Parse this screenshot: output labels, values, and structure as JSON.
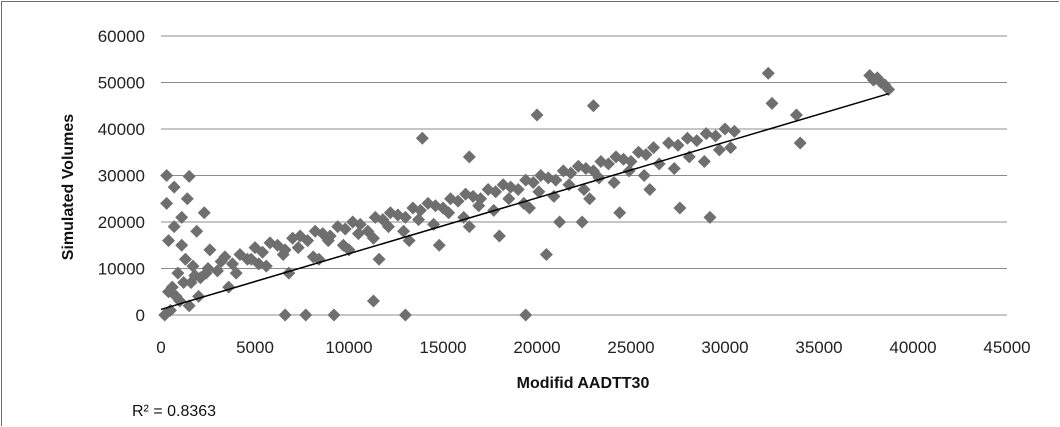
{
  "chart_data": {
    "type": "scatter",
    "title": "",
    "xlabel": "Modifid  AADTT30",
    "ylabel": "Simulated Volumes",
    "xlim": [
      0,
      45000
    ],
    "ylim": [
      0,
      60000
    ],
    "x_ticks": [
      "0",
      "5000",
      "10000",
      "15000",
      "20000",
      "25000",
      "30000",
      "35000",
      "40000",
      "45000"
    ],
    "y_ticks": [
      "0",
      "10000",
      "20000",
      "30000",
      "40000",
      "50000",
      "60000"
    ],
    "grid": "horizontal",
    "legend": "none",
    "marker": "diamond",
    "marker_color": "#6f6f6f",
    "trendline": {
      "type": "linear",
      "x": [
        0,
        38700
      ],
      "y": [
        1200,
        47600
      ],
      "color": "#000000"
    },
    "r_squared_label": "R² = 0.8363",
    "series": [
      {
        "x": [
          300,
          700,
          1100,
          1500,
          1900,
          2300,
          400,
          900,
          1300,
          1700,
          2100,
          2600,
          3000,
          3400,
          3800,
          4200,
          4600,
          5000,
          5400,
          5800,
          6200,
          6600,
          7000,
          7400,
          7800,
          8200,
          8600,
          9000,
          9400,
          9800,
          10200,
          10600,
          11000,
          11400,
          11800,
          12200,
          12600,
          13000,
          13400,
          13800,
          14200,
          14600,
          15000,
          15400,
          15800,
          16200,
          16600,
          17000,
          17400,
          17800,
          18200,
          18600,
          19000,
          19400,
          19800,
          20200,
          20600,
          21000,
          21400,
          21800,
          22200,
          22600,
          23000,
          23400,
          23800,
          24200,
          24600,
          25000,
          25400,
          25800,
          26200,
          27000,
          27500,
          28000,
          28500,
          29000,
          29500,
          30000,
          30500,
          32300,
          32500,
          33800,
          34000,
          37700,
          37900,
          38100,
          38300,
          38500,
          38700,
          200,
          500,
          1000,
          1500,
          2000,
          600,
          1200,
          1800,
          2500,
          3200,
          4000,
          4800,
          5600,
          6500,
          7300,
          8100,
          8900,
          9700,
          10500,
          11300,
          12100,
          12900,
          13700,
          14500,
          15300,
          16100,
          16900,
          17700,
          18500,
          19300,
          20100,
          20900,
          21700,
          22500,
          23300,
          24100,
          24900,
          25700,
          26500,
          27300,
          28100,
          28900,
          29700,
          30300,
          800,
          1600,
          2400,
          3600,
          5200,
          6800,
          8400,
          10000,
          11600,
          13200,
          14800,
          16400,
          18000,
          19600,
          21200,
          22800,
          24400,
          26000,
          27600,
          29200,
          400,
          700,
          1100,
          1400,
          300,
          13900,
          16400,
          19400,
          20000,
          23000,
          22400,
          20500,
          11300,
          9200,
          7700,
          6600,
          13000
        ],
        "y": [
          30000,
          27500,
          15000,
          29800,
          18000,
          22000,
          5000,
          9000,
          12000,
          10500,
          8000,
          14000,
          9500,
          12500,
          11000,
          13000,
          12000,
          14500,
          13500,
          15500,
          15000,
          14000,
          16500,
          17000,
          16000,
          18000,
          17500,
          17000,
          19000,
          18500,
          20000,
          19500,
          18000,
          21000,
          20500,
          22000,
          21500,
          21000,
          23000,
          22500,
          24000,
          23500,
          23000,
          25000,
          24500,
          26000,
          25500,
          25000,
          27000,
          26500,
          28000,
          27500,
          27000,
          29000,
          28500,
          30000,
          29500,
          29000,
          31000,
          30500,
          32000,
          31500,
          31000,
          33000,
          32500,
          34000,
          33500,
          33000,
          35000,
          34500,
          36000,
          37000,
          36500,
          38000,
          37500,
          39000,
          38500,
          40000,
          39500,
          52000,
          45500,
          43000,
          37000,
          51500,
          50500,
          51000,
          50000,
          49500,
          48500,
          0,
          1000,
          3000,
          2000,
          4000,
          6000,
          7000,
          8500,
          10000,
          11500,
          9000,
          12000,
          10500,
          13000,
          14500,
          12500,
          16000,
          15000,
          17500,
          16500,
          19000,
          18000,
          20500,
          19500,
          22000,
          21000,
          23500,
          22500,
          25000,
          24000,
          26500,
          25500,
          28000,
          27000,
          29500,
          28500,
          31000,
          30000,
          32500,
          31500,
          34000,
          33000,
          35500,
          36000,
          4000,
          7000,
          9000,
          6000,
          11000,
          9000,
          12000,
          14000,
          12000,
          16000,
          15000,
          19000,
          17000,
          23000,
          20000,
          25000,
          22000,
          27000,
          23000,
          21000,
          16000,
          19000,
          21000,
          25000,
          24000,
          38000,
          34000,
          0,
          43000,
          45000,
          20000,
          13000,
          3000,
          0,
          0,
          0,
          0
        ]
      }
    ]
  }
}
